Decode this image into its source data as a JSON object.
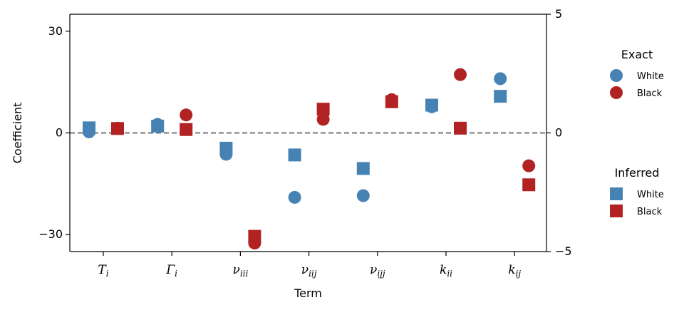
{
  "chart_data": {
    "type": "scatter",
    "xlabel": "Term",
    "ylabel": "Coefficient",
    "ylim": [
      -35,
      35
    ],
    "yticks": [
      -30,
      0,
      30
    ],
    "ytick_labels": [
      "−30",
      "0",
      "30"
    ],
    "secondary_ylim": [
      -5,
      5
    ],
    "secondary_yticks": [
      -5,
      0,
      5
    ],
    "secondary_ytick_labels": [
      "−5",
      "0",
      "5"
    ],
    "categories": [
      {
        "base": "T",
        "sub": "i"
      },
      {
        "base": "Γ",
        "sub": "i"
      },
      {
        "base": "ν",
        "sub": "iii"
      },
      {
        "base": "ν",
        "sub": "iij"
      },
      {
        "base": "ν",
        "sub": "ijj"
      },
      {
        "base": "k",
        "sub": "ii"
      },
      {
        "base": "k",
        "sub": "ij"
      }
    ],
    "zero_line": true,
    "grid": false,
    "legend_placement": "right",
    "legends": [
      {
        "title": "Exact",
        "marker": "circle",
        "entries": [
          {
            "label": "White",
            "color": "#4682b4"
          },
          {
            "label": "Black",
            "color": "#b22222"
          }
        ]
      },
      {
        "title": "Inferred",
        "marker": "square",
        "entries": [
          {
            "label": "White",
            "color": "#4682b4"
          },
          {
            "label": "Black",
            "color": "#b22222"
          }
        ]
      }
    ],
    "series": [
      {
        "group": "Exact",
        "name": "White",
        "marker": "circle",
        "color": "#4682b4",
        "values": [
          0.3,
          2.5,
          -6.3,
          -19.0,
          -18.5,
          7.7,
          16.0
        ]
      },
      {
        "group": "Exact",
        "name": "Black",
        "marker": "circle",
        "color": "#b22222",
        "values": [
          1.4,
          5.3,
          -32.5,
          4.0,
          9.8,
          17.2,
          -9.7
        ]
      },
      {
        "group": "Inferred",
        "name": "White",
        "marker": "square",
        "color": "#4682b4",
        "values": [
          1.5,
          2.0,
          -4.5,
          -6.5,
          -10.5,
          8.2,
          10.8
        ]
      },
      {
        "group": "Inferred",
        "name": "Black",
        "marker": "square",
        "color": "#b22222",
        "values": [
          1.3,
          1.0,
          -30.5,
          7.0,
          9.2,
          1.4,
          -15.3
        ]
      }
    ]
  }
}
